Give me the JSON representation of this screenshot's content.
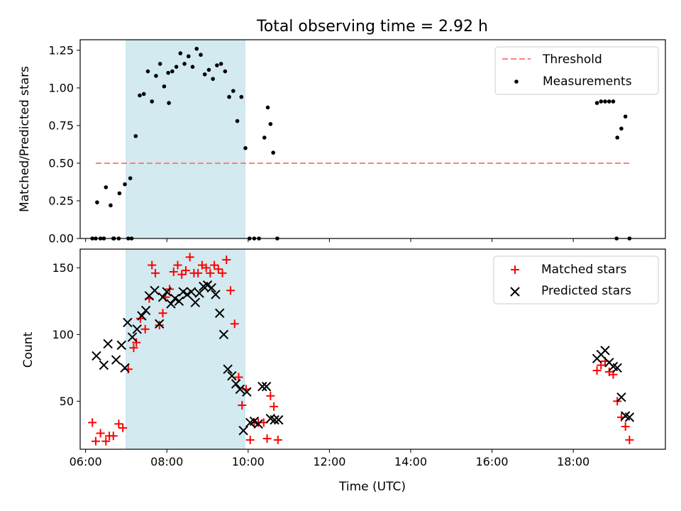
{
  "chart_data": [
    {
      "type": "scatter",
      "title": "Total observing time = 2.92 h",
      "xlabel": "",
      "ylabel": "Matched/Predicted stars",
      "xlim": [
        "05:52",
        "20:16"
      ],
      "ylim": [
        0,
        1.32
      ],
      "xticks": [
        "06:00",
        "08:00",
        "10:00",
        "12:00",
        "14:00",
        "16:00",
        "18:00"
      ],
      "xticklabels_shown": false,
      "yticks": [
        0,
        0.25,
        0.5,
        0.75,
        1.0,
        1.25
      ],
      "yticklabels": [
        "0.00",
        "0.25",
        "0.50",
        "0.75",
        "1.00",
        "1.25"
      ],
      "observing_window": {
        "start": "07:00",
        "end": "09:55",
        "color": "#d3eaf0"
      },
      "legend": {
        "position": "top-right"
      },
      "series": [
        {
          "name": "Threshold",
          "style": "dashed-line",
          "color": "#ff7f7f",
          "x": [
            "06:15",
            "19:25"
          ],
          "y": [
            0.5,
            0.5
          ]
        },
        {
          "name": "Measurements",
          "style": "dot",
          "color": "#000000",
          "x": [
            "06:10",
            "06:17",
            "06:22",
            "06:30",
            "06:37",
            "06:42",
            "06:50",
            "06:58",
            "07:06",
            "07:14",
            "07:20",
            "07:26",
            "07:32",
            "07:38",
            "07:44",
            "07:50",
            "07:56",
            "08:02",
            "08:08",
            "08:14",
            "08:20",
            "08:26",
            "08:32",
            "08:38",
            "08:44",
            "08:50",
            "08:56",
            "09:02",
            "09:08",
            "09:14",
            "09:20",
            "09:26",
            "09:32",
            "09:38",
            "09:44",
            "09:50",
            "06:15",
            "06:27",
            "06:41",
            "06:49",
            "07:03",
            "07:08",
            "08:03",
            "09:56",
            "10:02",
            "10:09",
            "10:16",
            "10:24",
            "10:29",
            "10:33",
            "10:37",
            "10:43",
            "18:35",
            "18:41",
            "18:47",
            "18:53",
            "18:59",
            "19:05",
            "19:11",
            "19:17",
            "19:23",
            "19:04"
          ],
          "y": [
            0.0,
            0.24,
            0.0,
            0.34,
            0.22,
            0.0,
            0.3,
            0.36,
            0.4,
            0.68,
            0.95,
            0.96,
            1.11,
            0.91,
            1.08,
            1.16,
            1.01,
            1.1,
            1.11,
            1.14,
            1.23,
            1.16,
            1.21,
            1.14,
            1.26,
            1.22,
            1.09,
            1.12,
            1.06,
            1.15,
            1.16,
            1.11,
            0.94,
            0.98,
            0.78,
            0.94,
            0.0,
            0.0,
            0.0,
            0.0,
            0.0,
            0.0,
            0.9,
            0.6,
            0.0,
            0.0,
            0.0,
            0.67,
            0.87,
            0.76,
            0.57,
            0.0,
            0.9,
            0.91,
            0.91,
            0.91,
            0.91,
            0.67,
            0.73,
            0.81,
            0.0,
            0.0
          ]
        }
      ]
    },
    {
      "type": "scatter",
      "title": "",
      "xlabel": "Time (UTC)",
      "ylabel": "Count",
      "xlim": [
        "05:52",
        "20:16"
      ],
      "ylim": [
        14,
        164
      ],
      "xticks": [
        "06:00",
        "08:00",
        "10:00",
        "12:00",
        "14:00",
        "16:00",
        "18:00"
      ],
      "yticks": [
        50,
        100,
        150
      ],
      "observing_window": {
        "start": "07:00",
        "end": "09:55",
        "color": "#d3eaf0"
      },
      "legend": {
        "position": "top-right"
      },
      "series": [
        {
          "name": "Matched stars",
          "marker": "+",
          "color": "#ff0000",
          "x": [
            "06:10",
            "06:15",
            "06:22",
            "06:30",
            "06:35",
            "06:41",
            "06:49",
            "06:55",
            "07:03",
            "07:11",
            "07:15",
            "07:21",
            "07:28",
            "07:34",
            "07:38",
            "07:43",
            "07:49",
            "07:54",
            "07:58",
            "08:04",
            "08:10",
            "08:16",
            "08:22",
            "08:28",
            "08:34",
            "08:40",
            "08:46",
            "08:52",
            "08:58",
            "09:04",
            "09:10",
            "09:16",
            "09:22",
            "09:28",
            "09:34",
            "09:40",
            "09:46",
            "09:51",
            "09:57",
            "10:03",
            "10:09",
            "10:15",
            "10:23",
            "10:28",
            "10:33",
            "10:38",
            "10:44",
            "18:35",
            "18:41",
            "18:47",
            "18:53",
            "18:59",
            "19:05",
            "19:11",
            "19:17",
            "19:23"
          ],
          "y": [
            34,
            20,
            26,
            20,
            24,
            24,
            33,
            30,
            74,
            90,
            94,
            112,
            104,
            127,
            152,
            146,
            107,
            116,
            128,
            134,
            147,
            152,
            145,
            148,
            158,
            146,
            146,
            152,
            150,
            146,
            152,
            149,
            146,
            156,
            133,
            108,
            68,
            47,
            59,
            21,
            34,
            34,
            34,
            22,
            54,
            46,
            21,
            73,
            77,
            80,
            72,
            70,
            50,
            38,
            31,
            21
          ]
        },
        {
          "name": "Predicted stars",
          "marker": "x",
          "color": "#000000",
          "x": [
            "06:16",
            "06:27",
            "06:33",
            "06:45",
            "06:53",
            "06:58",
            "07:02",
            "07:09",
            "07:16",
            "07:23",
            "07:29",
            "07:34",
            "07:42",
            "07:49",
            "07:54",
            "08:00",
            "08:06",
            "08:12",
            "08:18",
            "08:24",
            "08:30",
            "08:36",
            "08:42",
            "08:48",
            "08:54",
            "09:00",
            "09:06",
            "09:12",
            "09:18",
            "09:24",
            "09:30",
            "09:36",
            "09:42",
            "09:48",
            "09:53",
            "09:58",
            "10:03",
            "10:09",
            "10:15",
            "10:21",
            "10:27",
            "10:33",
            "10:39",
            "10:45",
            "18:35",
            "18:41",
            "18:47",
            "18:53",
            "18:59",
            "19:05",
            "19:11",
            "19:17",
            "19:23"
          ],
          "y": [
            84,
            77,
            93,
            81,
            92,
            75,
            109,
            98,
            104,
            114,
            118,
            129,
            133,
            108,
            128,
            132,
            123,
            127,
            125,
            132,
            130,
            132,
            124,
            131,
            136,
            137,
            135,
            130,
            116,
            100,
            74,
            69,
            63,
            59,
            28,
            57,
            34,
            35,
            33,
            61,
            61,
            37,
            36,
            36,
            82,
            85,
            88,
            79,
            76,
            75,
            53,
            39,
            38
          ]
        }
      ]
    }
  ]
}
